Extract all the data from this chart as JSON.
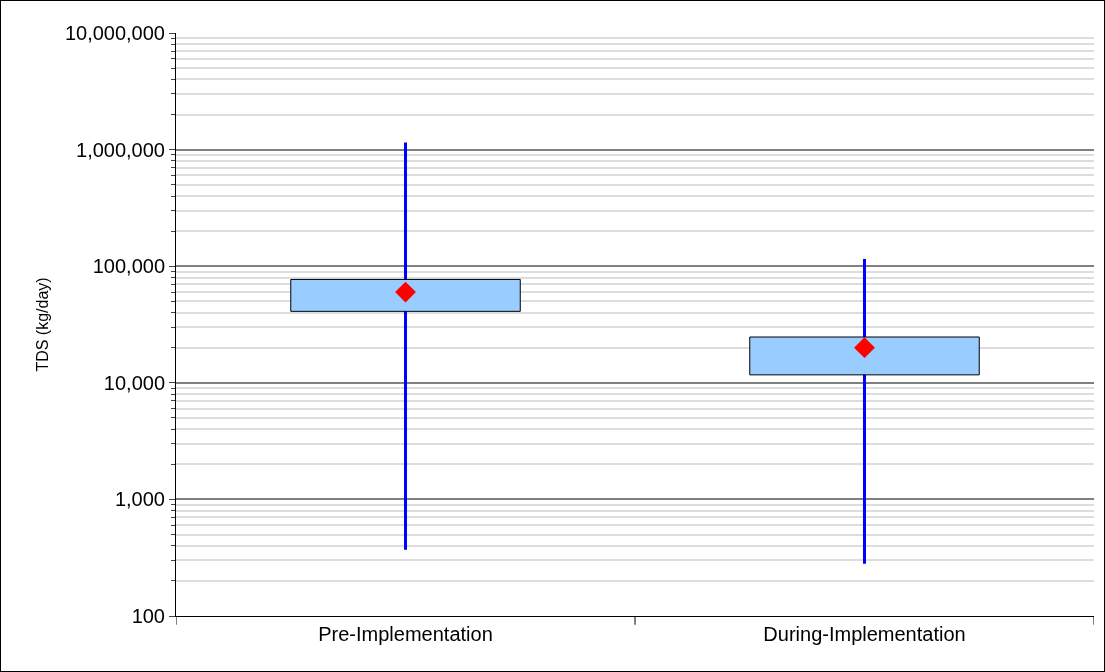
{
  "chart_data": {
    "type": "box",
    "categories": [
      "Pre-Implementation",
      "During-Implementation"
    ],
    "ylabel": "TDS (kg/day)",
    "log": true,
    "ylim": [
      100,
      10000000
    ],
    "yticks": [
      {
        "value": 100,
        "label": "100"
      },
      {
        "value": 1000,
        "label": "1,000"
      },
      {
        "value": 10000,
        "label": "10,000"
      },
      {
        "value": 100000,
        "label": "100,000"
      },
      {
        "value": 1000000,
        "label": "1,000,000"
      },
      {
        "value": 10000000,
        "label": "10,000,000"
      }
    ],
    "grid": "y",
    "marker": "diamond",
    "series": [
      {
        "color": "#99ccff",
        "boxes": [
          {
            "low": 370,
            "q1": 41000,
            "q3": 77000,
            "high": 1150000,
            "mean": 60000
          },
          {
            "low": 280,
            "q1": 11700,
            "q3": 24700,
            "high": 115000,
            "mean": 20000
          }
        ]
      }
    ]
  }
}
